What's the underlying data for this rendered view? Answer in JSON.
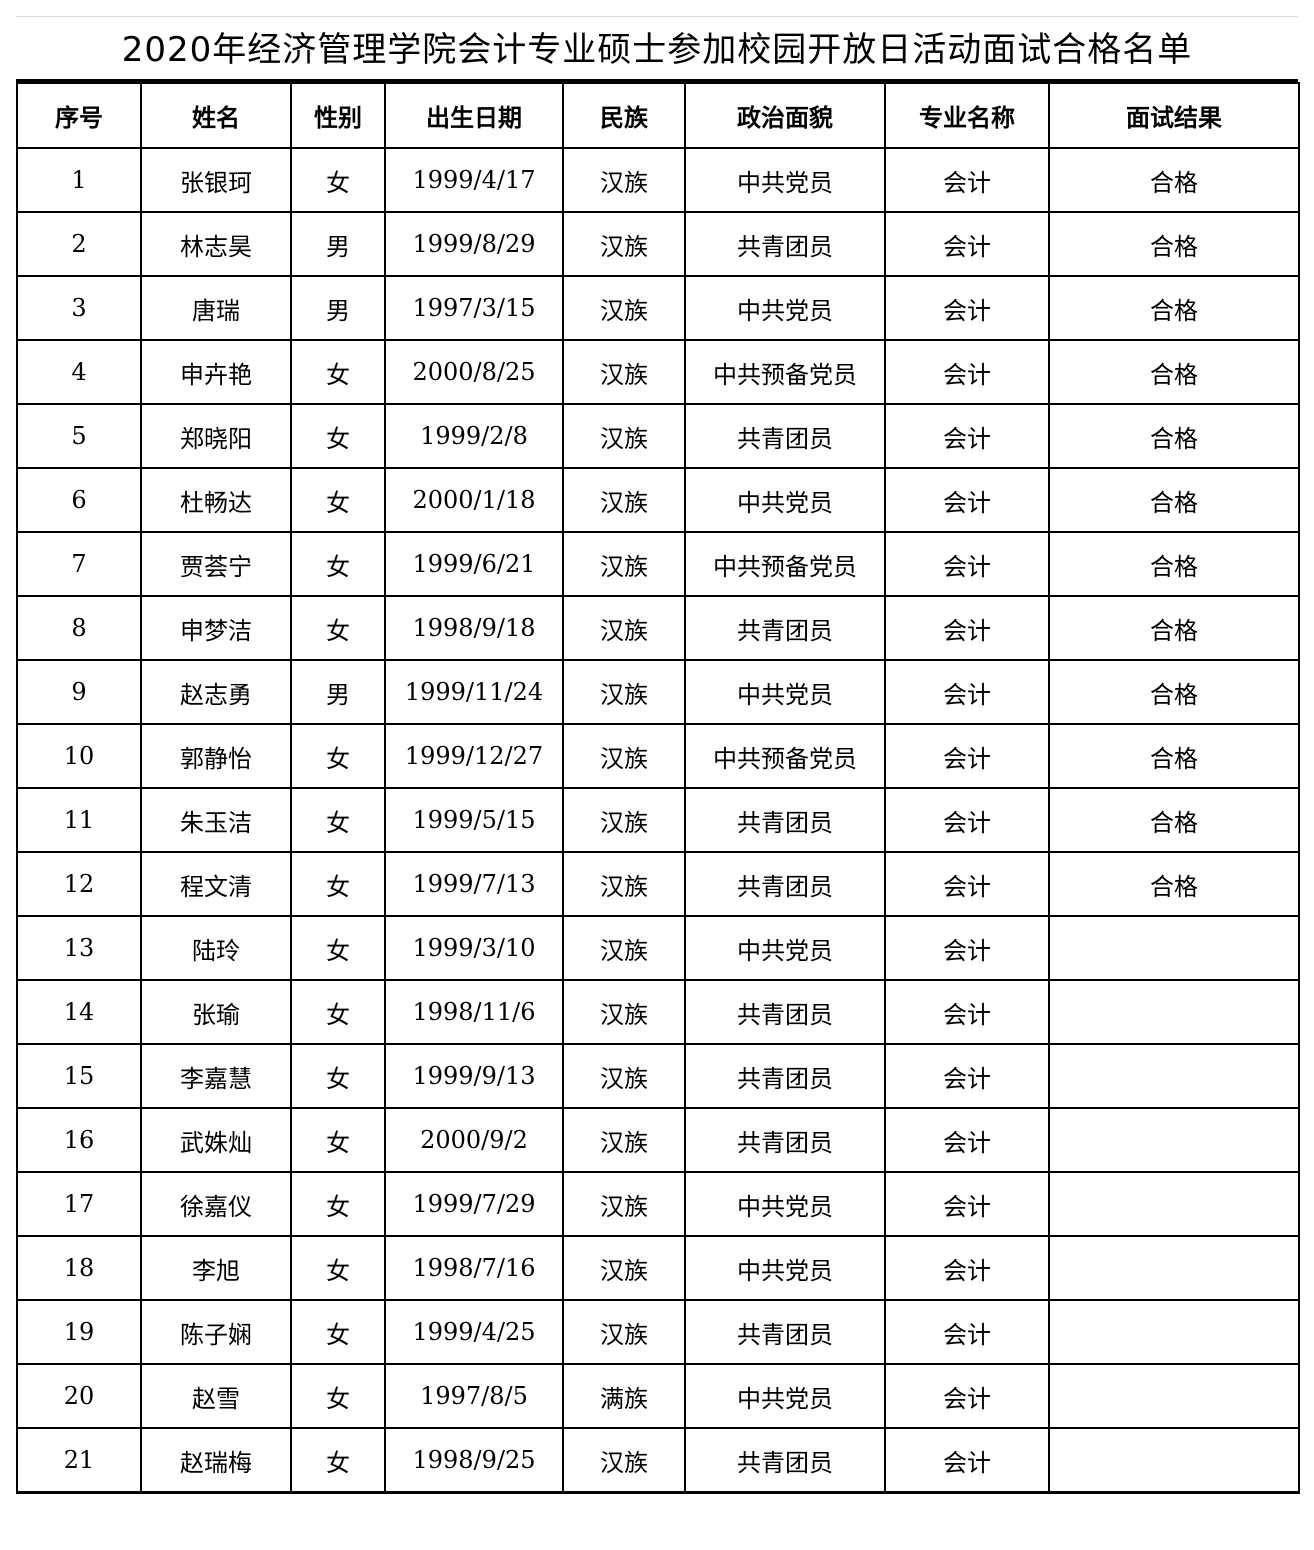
{
  "title": "2020年经济管理学院会计专业硕士参加校园开放日活动面试合格名单",
  "headers": [
    "序号",
    "姓名",
    "性别",
    "出生日期",
    "民族",
    "政治面貌",
    "专业名称",
    "面试结果"
  ],
  "rows": [
    [
      "1",
      "张银珂",
      "女",
      "1999/4/17",
      "汉族",
      "中共党员",
      "会计",
      "合格"
    ],
    [
      "2",
      "林志昊",
      "男",
      "1999/8/29",
      "汉族",
      "共青团员",
      "会计",
      "合格"
    ],
    [
      "3",
      "唐瑞",
      "男",
      "1997/3/15",
      "汉族",
      "中共党员",
      "会计",
      "合格"
    ],
    [
      "4",
      "申卉艳",
      "女",
      "2000/8/25",
      "汉族",
      "中共预备党员",
      "会计",
      "合格"
    ],
    [
      "5",
      "郑晓阳",
      "女",
      "1999/2/8",
      "汉族",
      "共青团员",
      "会计",
      "合格"
    ],
    [
      "6",
      "杜畅达",
      "女",
      "2000/1/18",
      "汉族",
      "中共党员",
      "会计",
      "合格"
    ],
    [
      "7",
      "贾荟宁",
      "女",
      "1999/6/21",
      "汉族",
      "中共预备党员",
      "会计",
      "合格"
    ],
    [
      "8",
      "申梦洁",
      "女",
      "1998/9/18",
      "汉族",
      "共青团员",
      "会计",
      "合格"
    ],
    [
      "9",
      "赵志勇",
      "男",
      "1999/11/24",
      "汉族",
      "中共党员",
      "会计",
      "合格"
    ],
    [
      "10",
      "郭静怡",
      "女",
      "1999/12/27",
      "汉族",
      "中共预备党员",
      "会计",
      "合格"
    ],
    [
      "11",
      "朱玉洁",
      "女",
      "1999/5/15",
      "汉族",
      "共青团员",
      "会计",
      "合格"
    ],
    [
      "12",
      "程文清",
      "女",
      "1999/7/13",
      "汉族",
      "共青团员",
      "会计",
      "合格"
    ],
    [
      "13",
      "陆玲",
      "女",
      "1999/3/10",
      "汉族",
      "中共党员",
      "会计",
      ""
    ],
    [
      "14",
      "张瑜",
      "女",
      "1998/11/6",
      "汉族",
      "共青团员",
      "会计",
      ""
    ],
    [
      "15",
      "李嘉慧",
      "女",
      "1999/9/13",
      "汉族",
      "共青团员",
      "会计",
      ""
    ],
    [
      "16",
      "武姝灿",
      "女",
      "2000/9/2",
      "汉族",
      "共青团员",
      "会计",
      ""
    ],
    [
      "17",
      "徐嘉仪",
      "女",
      "1999/7/29",
      "汉族",
      "中共党员",
      "会计",
      ""
    ],
    [
      "18",
      "李旭",
      "女",
      "1998/7/16",
      "汉族",
      "中共党员",
      "会计",
      ""
    ],
    [
      "19",
      "陈子娴",
      "女",
      "1999/4/25",
      "汉族",
      "共青团员",
      "会计",
      ""
    ],
    [
      "20",
      "赵雪",
      "女",
      "1997/8/5",
      "满族",
      "中共党员",
      "会计",
      ""
    ],
    [
      "21",
      "赵瑞梅",
      "女",
      "1998/9/25",
      "汉族",
      "共青团员",
      "会计",
      ""
    ]
  ]
}
